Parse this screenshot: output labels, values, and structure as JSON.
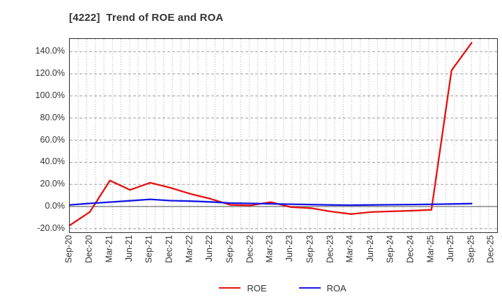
{
  "header": {
    "title": "[4222]  Trend of ROE and ROA"
  },
  "chart_data": {
    "type": "line",
    "title": "[4222] Trend of ROE and ROA",
    "categories": [
      "Sep-20",
      "Dec-20",
      "Mar-21",
      "Jun-21",
      "Sep-21",
      "Dec-21",
      "Mar-22",
      "Jun-22",
      "Sep-22",
      "Dec-22",
      "Mar-23",
      "Jun-23",
      "Sep-23",
      "Dec-23",
      "Mar-24",
      "Jun-24",
      "Sep-24",
      "Dec-24",
      "Mar-25",
      "Jun-25",
      "Sep-25",
      "Dec-25"
    ],
    "series": [
      {
        "name": "ROE",
        "color": "#e60f0f",
        "values": [
          -17,
          -5,
          23.5,
          15,
          21.5,
          17,
          11.5,
          7,
          1.5,
          1.0,
          4.0,
          -0.5,
          -1.5,
          -4.5,
          -6.8,
          -5.0,
          -4.4,
          -3.8,
          -3.0,
          123,
          148,
          null
        ]
      },
      {
        "name": "ROA",
        "color": "#1414e6",
        "values": [
          1.5,
          2.8,
          4.0,
          5.2,
          6.5,
          5.3,
          4.9,
          4.2,
          3.1,
          2.8,
          2.4,
          2.1,
          1.8,
          1.4,
          1.2,
          1.4,
          1.6,
          1.8,
          2.0,
          2.3,
          2.6,
          null
        ]
      }
    ],
    "xlabel": "",
    "ylabel": "",
    "ylim": [
      -23.3,
      151.5
    ],
    "yticks": [
      140,
      120,
      100,
      80,
      60,
      40,
      20,
      0,
      -20
    ],
    "ytick_suffix": "%",
    "ytick_decimals": 1,
    "grid": true,
    "zero_line": true,
    "legend_position": "bottom-center",
    "colors": {
      "grid": "#9a9a9a",
      "zero_line": "#7d7d7d",
      "axis_border": "#2b2b2b",
      "text": "#333333"
    }
  }
}
